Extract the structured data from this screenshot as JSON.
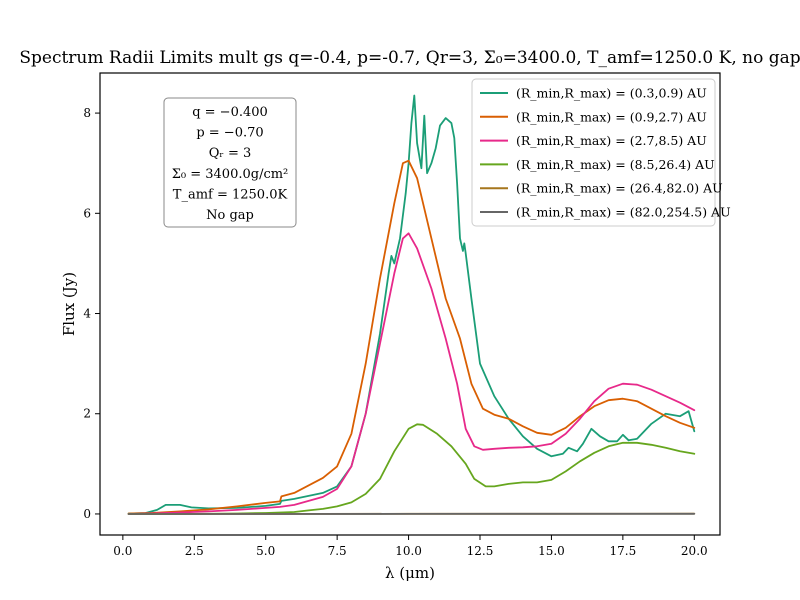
{
  "chart_data": {
    "type": "line",
    "title": "Spectrum Radii Limits mult gs q=-0.4, p=-0.7, Qr=3, Σ₀=3400.0, T_amf=1250.0 K, no gap",
    "xlabel": "λ (μm)",
    "ylabel": "Flux (Jy)",
    "xlim": [
      -0.8,
      20.9
    ],
    "ylim": [
      -0.42,
      8.8
    ],
    "xticks": [
      0.0,
      2.5,
      5.0,
      7.5,
      10.0,
      12.5,
      15.0,
      17.5,
      20.0
    ],
    "xtick_labels": [
      "0.0",
      "2.5",
      "5.0",
      "7.5",
      "10.0",
      "12.5",
      "15.0",
      "17.5",
      "20.0"
    ],
    "yticks": [
      0,
      2,
      4,
      6,
      8
    ],
    "ytick_labels": [
      "0",
      "2",
      "4",
      "6",
      "8"
    ],
    "grid": false,
    "legend_position": "top-right",
    "annotation_lines": [
      "q = −0.400",
      "p = −0.70",
      "Qᵣ = 3",
      "Σ₀ = 3400.0g/cm²",
      "T_amf = 1250.0K",
      "No gap"
    ],
    "series": [
      {
        "name": "(R_min,R_max) = (0.3,0.9) AU",
        "color": "#1b9e77",
        "points": [
          [
            0.2,
            0.01
          ],
          [
            0.8,
            0.02
          ],
          [
            1.2,
            0.08
          ],
          [
            1.5,
            0.18
          ],
          [
            2.0,
            0.18
          ],
          [
            2.4,
            0.13
          ],
          [
            3.0,
            0.11
          ],
          [
            4.0,
            0.12
          ],
          [
            5.0,
            0.16
          ],
          [
            5.5,
            0.2
          ],
          [
            5.55,
            0.26
          ],
          [
            6.0,
            0.3
          ],
          [
            7.0,
            0.42
          ],
          [
            7.5,
            0.55
          ],
          [
            8.0,
            0.95
          ],
          [
            8.5,
            2.0
          ],
          [
            9.0,
            3.6
          ],
          [
            9.3,
            4.8
          ],
          [
            9.4,
            5.15
          ],
          [
            9.5,
            5.0
          ],
          [
            9.7,
            5.5
          ],
          [
            9.9,
            6.4
          ],
          [
            10.0,
            7.0
          ],
          [
            10.1,
            7.8
          ],
          [
            10.2,
            8.35
          ],
          [
            10.3,
            7.4
          ],
          [
            10.45,
            6.9
          ],
          [
            10.55,
            7.95
          ],
          [
            10.65,
            6.8
          ],
          [
            10.8,
            7.0
          ],
          [
            10.95,
            7.3
          ],
          [
            11.1,
            7.75
          ],
          [
            11.3,
            7.9
          ],
          [
            11.5,
            7.8
          ],
          [
            11.6,
            7.5
          ],
          [
            11.7,
            6.6
          ],
          [
            11.8,
            5.5
          ],
          [
            11.9,
            5.25
          ],
          [
            11.95,
            5.4
          ],
          [
            12.0,
            5.2
          ],
          [
            12.2,
            4.3
          ],
          [
            12.5,
            3.0
          ],
          [
            13.0,
            2.35
          ],
          [
            13.5,
            1.9
          ],
          [
            14.0,
            1.55
          ],
          [
            14.5,
            1.3
          ],
          [
            15.0,
            1.15
          ],
          [
            15.4,
            1.2
          ],
          [
            15.6,
            1.32
          ],
          [
            15.9,
            1.25
          ],
          [
            16.1,
            1.4
          ],
          [
            16.4,
            1.7
          ],
          [
            16.7,
            1.55
          ],
          [
            17.0,
            1.45
          ],
          [
            17.3,
            1.45
          ],
          [
            17.5,
            1.58
          ],
          [
            17.7,
            1.47
          ],
          [
            18.0,
            1.5
          ],
          [
            18.5,
            1.8
          ],
          [
            19.0,
            2.0
          ],
          [
            19.5,
            1.95
          ],
          [
            19.8,
            2.05
          ],
          [
            20.0,
            1.65
          ]
        ]
      },
      {
        "name": "(R_min,R_max) = (0.9,2.7) AU",
        "color": "#d95f02",
        "points": [
          [
            0.2,
            0.01
          ],
          [
            1.0,
            0.02
          ],
          [
            2.0,
            0.05
          ],
          [
            3.0,
            0.09
          ],
          [
            4.0,
            0.15
          ],
          [
            5.0,
            0.22
          ],
          [
            5.5,
            0.25
          ],
          [
            5.55,
            0.35
          ],
          [
            6.0,
            0.42
          ],
          [
            7.0,
            0.72
          ],
          [
            7.5,
            0.95
          ],
          [
            8.0,
            1.6
          ],
          [
            8.5,
            3.0
          ],
          [
            9.0,
            4.7
          ],
          [
            9.5,
            6.2
          ],
          [
            9.8,
            7.0
          ],
          [
            10.0,
            7.05
          ],
          [
            10.3,
            6.7
          ],
          [
            10.8,
            5.5
          ],
          [
            11.3,
            4.3
          ],
          [
            11.8,
            3.5
          ],
          [
            12.2,
            2.6
          ],
          [
            12.6,
            2.1
          ],
          [
            13.0,
            1.98
          ],
          [
            13.5,
            1.9
          ],
          [
            14.0,
            1.75
          ],
          [
            14.5,
            1.62
          ],
          [
            15.0,
            1.58
          ],
          [
            15.5,
            1.72
          ],
          [
            16.0,
            1.95
          ],
          [
            16.5,
            2.15
          ],
          [
            17.0,
            2.27
          ],
          [
            17.5,
            2.3
          ],
          [
            18.0,
            2.25
          ],
          [
            18.5,
            2.1
          ],
          [
            19.0,
            1.95
          ],
          [
            19.5,
            1.82
          ],
          [
            20.0,
            1.72
          ]
        ]
      },
      {
        "name": "(R_min,R_max) = (2.7,8.5) AU",
        "color": "#e7298a",
        "points": [
          [
            0.2,
            0.0
          ],
          [
            1.0,
            0.01
          ],
          [
            2.0,
            0.03
          ],
          [
            3.0,
            0.05
          ],
          [
            4.0,
            0.08
          ],
          [
            5.0,
            0.12
          ],
          [
            5.5,
            0.14
          ],
          [
            6.0,
            0.18
          ],
          [
            7.0,
            0.34
          ],
          [
            7.5,
            0.5
          ],
          [
            8.0,
            0.95
          ],
          [
            8.5,
            2.0
          ],
          [
            9.0,
            3.4
          ],
          [
            9.5,
            4.8
          ],
          [
            9.8,
            5.5
          ],
          [
            10.0,
            5.6
          ],
          [
            10.3,
            5.3
          ],
          [
            10.8,
            4.5
          ],
          [
            11.3,
            3.5
          ],
          [
            11.7,
            2.6
          ],
          [
            12.0,
            1.7
          ],
          [
            12.3,
            1.35
          ],
          [
            12.6,
            1.28
          ],
          [
            13.0,
            1.3
          ],
          [
            13.5,
            1.32
          ],
          [
            14.0,
            1.33
          ],
          [
            14.5,
            1.35
          ],
          [
            15.0,
            1.4
          ],
          [
            15.5,
            1.6
          ],
          [
            16.0,
            1.9
          ],
          [
            16.5,
            2.25
          ],
          [
            17.0,
            2.5
          ],
          [
            17.5,
            2.6
          ],
          [
            18.0,
            2.58
          ],
          [
            18.5,
            2.48
          ],
          [
            19.0,
            2.35
          ],
          [
            19.5,
            2.22
          ],
          [
            20.0,
            2.07
          ]
        ]
      },
      {
        "name": "(R_min,R_max) = (8.5,26.4) AU",
        "color": "#66a61e",
        "points": [
          [
            0.2,
            0.0
          ],
          [
            2.0,
            0.0
          ],
          [
            4.0,
            0.01
          ],
          [
            5.0,
            0.02
          ],
          [
            6.0,
            0.04
          ],
          [
            6.5,
            0.07
          ],
          [
            7.0,
            0.1
          ],
          [
            7.5,
            0.15
          ],
          [
            8.0,
            0.23
          ],
          [
            8.5,
            0.4
          ],
          [
            9.0,
            0.7
          ],
          [
            9.5,
            1.25
          ],
          [
            10.0,
            1.7
          ],
          [
            10.3,
            1.79
          ],
          [
            10.5,
            1.78
          ],
          [
            11.0,
            1.6
          ],
          [
            11.5,
            1.35
          ],
          [
            12.0,
            1.0
          ],
          [
            12.3,
            0.7
          ],
          [
            12.7,
            0.55
          ],
          [
            13.0,
            0.55
          ],
          [
            13.5,
            0.6
          ],
          [
            14.0,
            0.63
          ],
          [
            14.5,
            0.63
          ],
          [
            15.0,
            0.68
          ],
          [
            15.5,
            0.85
          ],
          [
            16.0,
            1.05
          ],
          [
            16.5,
            1.22
          ],
          [
            17.0,
            1.35
          ],
          [
            17.5,
            1.42
          ],
          [
            18.0,
            1.42
          ],
          [
            18.5,
            1.38
          ],
          [
            19.0,
            1.32
          ],
          [
            19.5,
            1.25
          ],
          [
            20.0,
            1.2
          ]
        ]
      },
      {
        "name": "(R_min,R_max) = (26.4,82.0) AU",
        "color": "#a6761d",
        "points": [
          [
            0.2,
            0.0
          ],
          [
            5.0,
            0.0
          ],
          [
            10.0,
            0.003
          ],
          [
            15.0,
            0.004
          ],
          [
            20.0,
            0.006
          ]
        ]
      },
      {
        "name": "(R_min,R_max) = (82.0,254.5) AU",
        "color": "#666666",
        "points": [
          [
            0.2,
            0.0
          ],
          [
            5.0,
            0.0
          ],
          [
            10.0,
            0.002
          ],
          [
            15.0,
            0.003
          ],
          [
            20.0,
            0.004
          ]
        ]
      }
    ]
  }
}
